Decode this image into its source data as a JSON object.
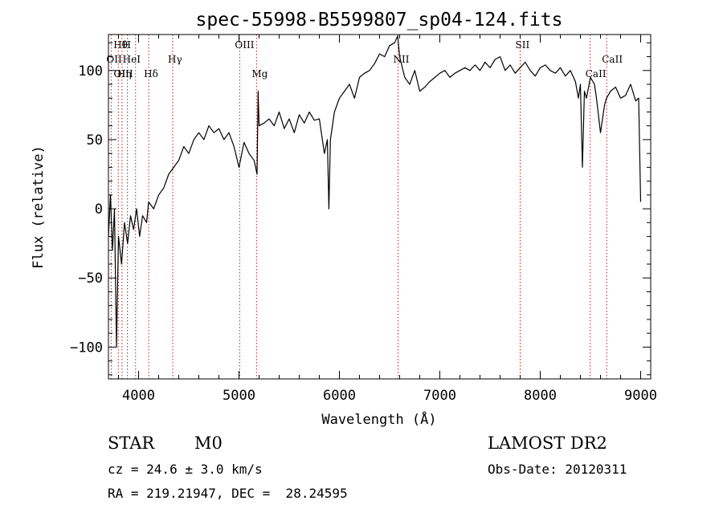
{
  "chart_data": {
    "type": "line",
    "title": "spec-55998-B5599807_sp04-124.fits",
    "xlabel": "Wavelength (Å)",
    "ylabel": "Flux (relative)",
    "xlim": [
      3700,
      9100
    ],
    "ylim": [
      -123,
      126
    ],
    "x_ticks": [
      4000,
      5000,
      6000,
      7000,
      8000,
      9000
    ],
    "y_ticks": [
      -100,
      -50,
      0,
      50,
      100
    ],
    "grid": false,
    "series": [
      {
        "x": [
          3700,
          3720,
          3740,
          3760,
          3780,
          3800,
          3830,
          3860,
          3890,
          3920,
          3950,
          3980,
          4010,
          4040,
          4080,
          4100,
          4150,
          4200,
          4250,
          4300,
          4350,
          4400,
          4450,
          4500,
          4550,
          4600,
          4650,
          4700,
          4750,
          4800,
          4850,
          4900,
          4950,
          5000,
          5050,
          5100,
          5150,
          5180,
          5190,
          5200,
          5250,
          5300,
          5350,
          5400,
          5450,
          5500,
          5550,
          5600,
          5650,
          5700,
          5750,
          5800,
          5850,
          5880,
          5895,
          5910,
          5950,
          6000,
          6050,
          6100,
          6150,
          6200,
          6250,
          6300,
          6350,
          6400,
          6450,
          6500,
          6550,
          6580,
          6600,
          6650,
          6700,
          6750,
          6800,
          6850,
          6900,
          6950,
          7000,
          7050,
          7100,
          7150,
          7200,
          7250,
          7300,
          7350,
          7400,
          7450,
          7500,
          7550,
          7600,
          7650,
          7700,
          7750,
          7800,
          7850,
          7900,
          7950,
          8000,
          8050,
          8100,
          8150,
          8200,
          8250,
          8300,
          8350,
          8380,
          8400,
          8420,
          8440,
          8460,
          8500,
          8540,
          8560,
          8600,
          8640,
          8660,
          8700,
          8750,
          8800,
          8850,
          8900,
          8950,
          8980,
          9000
        ],
        "values": [
          -20,
          10,
          -30,
          0,
          -100,
          -20,
          -40,
          -10,
          -25,
          -5,
          -15,
          0,
          -20,
          -5,
          -10,
          5,
          0,
          10,
          15,
          25,
          30,
          35,
          45,
          40,
          50,
          55,
          50,
          60,
          55,
          58,
          50,
          55,
          45,
          30,
          48,
          40,
          35,
          25,
          85,
          60,
          62,
          65,
          60,
          70,
          58,
          65,
          55,
          68,
          62,
          70,
          64,
          65,
          40,
          50,
          0,
          50,
          70,
          80,
          85,
          90,
          80,
          95,
          98,
          100,
          105,
          112,
          110,
          118,
          120,
          125,
          110,
          95,
          90,
          100,
          85,
          88,
          92,
          95,
          98,
          100,
          95,
          98,
          100,
          102,
          100,
          104,
          100,
          106,
          102,
          108,
          110,
          100,
          104,
          98,
          102,
          106,
          100,
          96,
          102,
          104,
          100,
          98,
          102,
          96,
          100,
          92,
          80,
          90,
          30,
          85,
          80,
          95,
          90,
          80,
          55,
          75,
          80,
          85,
          88,
          80,
          82,
          90,
          78,
          80,
          5
        ]
      }
    ],
    "line_labels": [
      {
        "label": "Hθ",
        "x": 3798
      },
      {
        "label": "H",
        "x": 3889
      },
      {
        "label": "OII",
        "x": 3727
      },
      {
        "label": "HeI",
        "x": 3889
      },
      {
        "label": "Hγ",
        "x": 4340
      },
      {
        "label": "OIII",
        "x": 5007
      },
      {
        "label": "Mg",
        "x": 5175
      },
      {
        "label": "NII",
        "x": 6584
      },
      {
        "label": "SII",
        "x": 7800
      },
      {
        "label": "CaII",
        "x": 8498
      },
      {
        "label": "CaII",
        "x": 8662
      },
      {
        "label": "OIII",
        "x": 3800
      },
      {
        "label": "Hη",
        "x": 3835
      },
      {
        "label": "Hδ",
        "x": 4101
      }
    ],
    "line_markers_x": [
      3727,
      3798,
      3835,
      3889,
      3970,
      4101,
      4340,
      5007,
      5175,
      6584,
      7800,
      8498,
      8662
    ]
  },
  "footer": {
    "object_class": "STAR",
    "subclass": "M0",
    "survey": "LAMOST DR2",
    "redshift": "cz = 24.6 ± 3.0 km/s",
    "obs_date": "Obs-Date: 20120311",
    "coords": "RA = 219.21947, DEC =  28.24595"
  },
  "colors": {
    "spectrum": "#000000",
    "marker_lines": "#b22222",
    "axes": "#000000",
    "background": "#ffffff"
  }
}
